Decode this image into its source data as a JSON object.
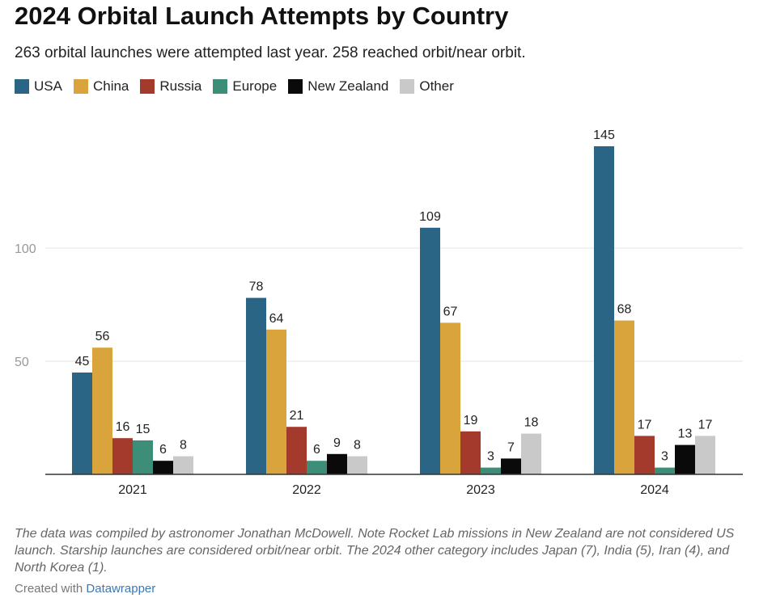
{
  "header": {
    "title": "2024 Orbital Launch Attempts by Country",
    "subtitle": "263 orbital launches were attempted last year. 258 reached orbit/near orbit."
  },
  "footer": {
    "note": "The data was compiled by astronomer Jonathan McDowell. Note Rocket Lab missions in New Zealand are not considered US launch. Starship launches are considered orbit/near orbit. The 2024 other category includes Japan (7), India (5), Iran (4), and North Korea (1).",
    "credit_prefix": "Created with",
    "credit_link": "Datawrapper"
  },
  "chart_data": {
    "type": "bar",
    "title": "2024 Orbital Launch Attempts by Country",
    "xlabel": "",
    "ylabel": "",
    "categories": [
      "2021",
      "2022",
      "2023",
      "2024"
    ],
    "series": [
      {
        "name": "USA",
        "color": "#2a6586",
        "values": [
          45,
          78,
          109,
          145
        ]
      },
      {
        "name": "China",
        "color": "#d9a43c",
        "values": [
          56,
          64,
          67,
          68
        ]
      },
      {
        "name": "Russia",
        "color": "#a33a2c",
        "values": [
          16,
          21,
          19,
          17
        ]
      },
      {
        "name": "Europe",
        "color": "#3d8e78",
        "values": [
          15,
          6,
          3,
          3
        ]
      },
      {
        "name": "New Zealand",
        "color": "#0a0a0a",
        "values": [
          6,
          9,
          7,
          13
        ]
      },
      {
        "name": "Other",
        "color": "#c9c9c9",
        "values": [
          8,
          8,
          18,
          17
        ]
      }
    ],
    "yticks": [
      50,
      100
    ],
    "ylim": [
      0,
      150
    ],
    "grid": true,
    "legend": "top-left"
  }
}
